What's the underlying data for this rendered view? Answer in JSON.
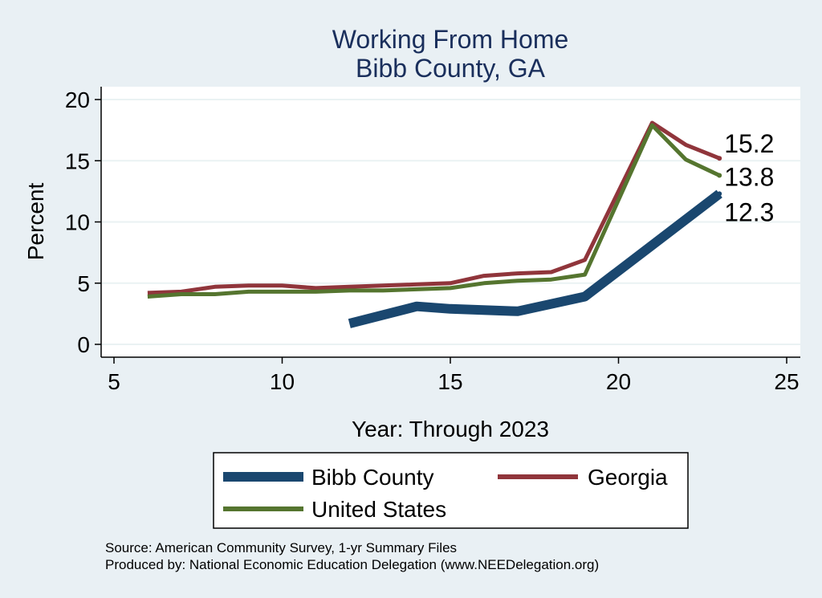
{
  "chart_data": {
    "type": "line",
    "title": "Working From Home",
    "subtitle": "Bibb County, GA",
    "xlabel": "Year: Through 2023",
    "ylabel": "Percent",
    "xlim": [
      5,
      25
    ],
    "ylim": [
      0,
      20
    ],
    "xticks": [
      5,
      10,
      15,
      20,
      25
    ],
    "yticks": [
      0,
      5,
      10,
      15,
      20
    ],
    "grid": true,
    "legend_position": "bottom",
    "series": [
      {
        "name": "Bibb County",
        "color": "#1a476f",
        "x": [
          12,
          14,
          15,
          17,
          19,
          21,
          23
        ],
        "y": [
          1.7,
          3.1,
          2.9,
          2.7,
          3.9,
          8.1,
          12.3
        ],
        "end_label": "12.3"
      },
      {
        "name": "Georgia",
        "color": "#90353b",
        "x": [
          6,
          7,
          8,
          9,
          10,
          11,
          12,
          13,
          14,
          15,
          16,
          17,
          18,
          19,
          21,
          22,
          23
        ],
        "y": [
          4.2,
          4.3,
          4.7,
          4.8,
          4.8,
          4.6,
          4.7,
          4.8,
          4.9,
          5.0,
          5.6,
          5.8,
          5.9,
          6.9,
          18.1,
          16.3,
          15.2
        ],
        "end_label": "15.2"
      },
      {
        "name": "United States",
        "color": "#55752f",
        "x": [
          6,
          7,
          8,
          9,
          10,
          11,
          12,
          13,
          14,
          15,
          16,
          17,
          18,
          19,
          21,
          22,
          23
        ],
        "y": [
          3.9,
          4.1,
          4.1,
          4.3,
          4.3,
          4.3,
          4.4,
          4.4,
          4.5,
          4.6,
          5.0,
          5.2,
          5.3,
          5.7,
          17.9,
          15.1,
          13.8
        ],
        "end_label": "13.8"
      }
    ],
    "notes": [
      "Source: American Community Survey, 1-yr Summary Files",
      "Produced by: National Economic Education Delegation (www.NEEDelegation.org)"
    ]
  }
}
